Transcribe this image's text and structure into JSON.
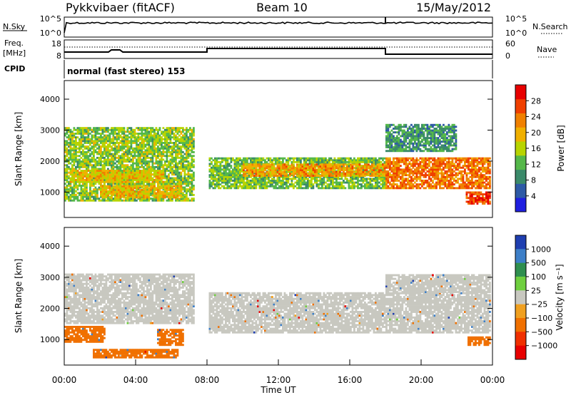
{
  "header": {
    "station": "Pykkvibaer (fitACF)",
    "beam": "Beam 10",
    "date": "15/May/2012"
  },
  "status_panels": {
    "nsky_label": "N.Sky",
    "nsky_ticks": [
      "10^5",
      "10^0"
    ],
    "nsearch_label": "N.Search",
    "nsearch_ticks": [
      "10^5",
      "10^0"
    ],
    "freq_label": "Freq.",
    "freq_unit": "[MHz]",
    "freq_ticks": [
      "18",
      "8"
    ],
    "nave_label": "Nave",
    "nave_ticks": [
      "60",
      "0"
    ],
    "cpid_label": "CPID",
    "cpid_text": "normal (fast stereo) 153"
  },
  "colors": {
    "power_scale": [
      "#1f1fe0",
      "#2e5aa6",
      "#3b8a6a",
      "#55b84a",
      "#b8d400",
      "#f0b000",
      "#f08000",
      "#f04000",
      "#e80000"
    ],
    "velocity_scale": [
      "#1f3fb0",
      "#3d7fc8",
      "#2f8f4f",
      "#6fcf3f",
      "#c8c8c0",
      "#f0a020",
      "#f07000",
      "#f03000",
      "#e80000"
    ]
  },
  "chart_data": [
    {
      "type": "heatmap",
      "panel": "power",
      "ylabel": "Slant Range [km]",
      "yticks": [
        "1000",
        "2000",
        "3000",
        "4000"
      ],
      "ylim": [
        180,
        4600
      ],
      "xlim": [
        0,
        24
      ],
      "colorbar_label": "Power [dB]",
      "colorbar_ticks": [
        "4",
        "8",
        "12",
        "16",
        "20",
        "24",
        "28"
      ],
      "clim": [
        0,
        32
      ],
      "bands": [
        {
          "t0": 0.0,
          "t1": 7.2,
          "r0": 700,
          "r1": 3100,
          "level": 14
        },
        {
          "t0": 0.3,
          "t1": 5.5,
          "r0": 1300,
          "r1": 1700,
          "level": 19
        },
        {
          "t0": 2.0,
          "t1": 6.5,
          "r0": 800,
          "r1": 1200,
          "level": 20
        },
        {
          "t0": 8.1,
          "t1": 18.0,
          "r0": 1100,
          "r1": 2100,
          "level": 13
        },
        {
          "t0": 10.0,
          "t1": 18.0,
          "r0": 1500,
          "r1": 1900,
          "level": 22
        },
        {
          "t0": 18.0,
          "t1": 23.9,
          "r0": 1100,
          "r1": 2100,
          "level": 25
        },
        {
          "t0": 18.0,
          "t1": 22.0,
          "r0": 2300,
          "r1": 3200,
          "level": 9
        },
        {
          "t0": 22.5,
          "t1": 23.9,
          "r0": 600,
          "r1": 1000,
          "level": 28
        }
      ]
    },
    {
      "type": "heatmap",
      "panel": "velocity",
      "ylabel": "Slant Range [km]",
      "yticks": [
        "1000",
        "2000",
        "3000",
        "4000"
      ],
      "ylim": [
        180,
        4600
      ],
      "xlim": [
        0,
        24
      ],
      "xticks": [
        "00:00",
        "04:00",
        "08:00",
        "12:00",
        "16:00",
        "20:00",
        "00:00"
      ],
      "xlabel": "Time UT",
      "colorbar_label": "Velocity [m s⁻¹]",
      "colorbar_ticks": [
        "1000",
        "500",
        "100",
        "25",
        "−25",
        "−100",
        "−500",
        "−1000"
      ],
      "bands": [
        {
          "t0": 0.0,
          "t1": 7.2,
          "r0": 1500,
          "r1": 3100,
          "vel": 0
        },
        {
          "t0": 0.0,
          "t1": 2.3,
          "r0": 900,
          "r1": 1400,
          "vel": -200
        },
        {
          "t0": 5.2,
          "t1": 6.6,
          "r0": 800,
          "r1": 1300,
          "vel": -200
        },
        {
          "t0": 1.6,
          "t1": 6.3,
          "r0": 400,
          "r1": 650,
          "vel": -150
        },
        {
          "t0": 8.1,
          "t1": 23.9,
          "r0": 1200,
          "r1": 2500,
          "vel": 0
        },
        {
          "t0": 18.0,
          "t1": 23.9,
          "r0": 2500,
          "r1": 3100,
          "vel": 0
        },
        {
          "t0": 22.6,
          "t1": 23.9,
          "r0": 800,
          "r1": 1100,
          "vel": -300
        }
      ]
    }
  ]
}
